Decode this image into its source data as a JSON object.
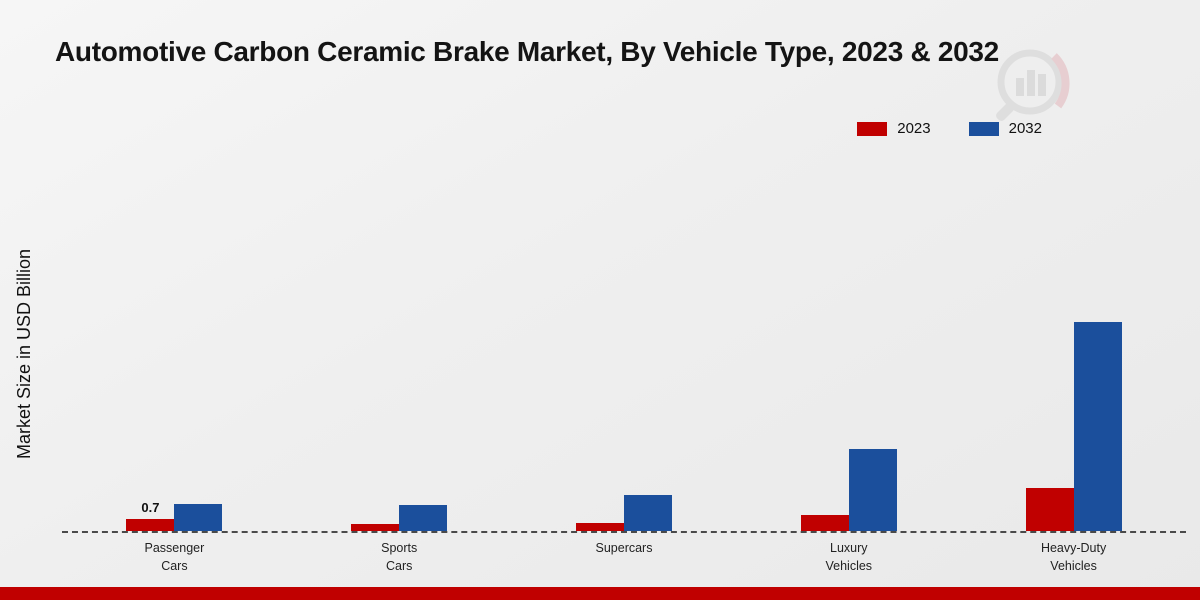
{
  "page": {
    "title": "Automotive Carbon Ceramic Brake Market, By Vehicle Type, 2023 & 2032",
    "ylabel": "Market Size in USD Billion"
  },
  "colors": {
    "series_2023": "#c00000",
    "series_2032": "#1b4f9c",
    "accent_bar": "#c00000",
    "baseline": "#4a4a4a"
  },
  "chart_data": {
    "type": "bar",
    "title": "Automotive Carbon Ceramic Brake Market, By Vehicle Type, 2023 & 2032",
    "xlabel": "",
    "ylabel": "Market Size in USD Billion",
    "categories": [
      "Passenger Cars",
      "Sports Cars",
      "Supercars",
      "Luxury Vehicles",
      "Heavy-Duty Vehicles"
    ],
    "category_label_lines": [
      [
        "Passenger",
        "Cars"
      ],
      [
        "Sports",
        "Cars"
      ],
      [
        "Supercars"
      ],
      [
        "Luxury",
        "Vehicles"
      ],
      [
        "Heavy-Duty",
        "Vehicles"
      ]
    ],
    "series": [
      {
        "name": "2023",
        "color": "#c00000",
        "values": [
          0.7,
          0.4,
          0.45,
          0.95,
          2.5
        ],
        "value_labels": [
          "0.7",
          "",
          "",
          "",
          ""
        ]
      },
      {
        "name": "2032",
        "color": "#1b4f9c",
        "values": [
          1.6,
          1.5,
          2.1,
          4.8,
          12.3
        ],
        "value_labels": [
          "",
          "",
          "",
          "",
          ""
        ]
      }
    ],
    "ylim": [
      0,
      13
    ],
    "grid": false,
    "axis_line_style": "dashed",
    "legend_position": "top-right",
    "annotations": [
      {
        "category": "Passenger Cars",
        "series": "2023",
        "text": "0.7"
      }
    ]
  }
}
